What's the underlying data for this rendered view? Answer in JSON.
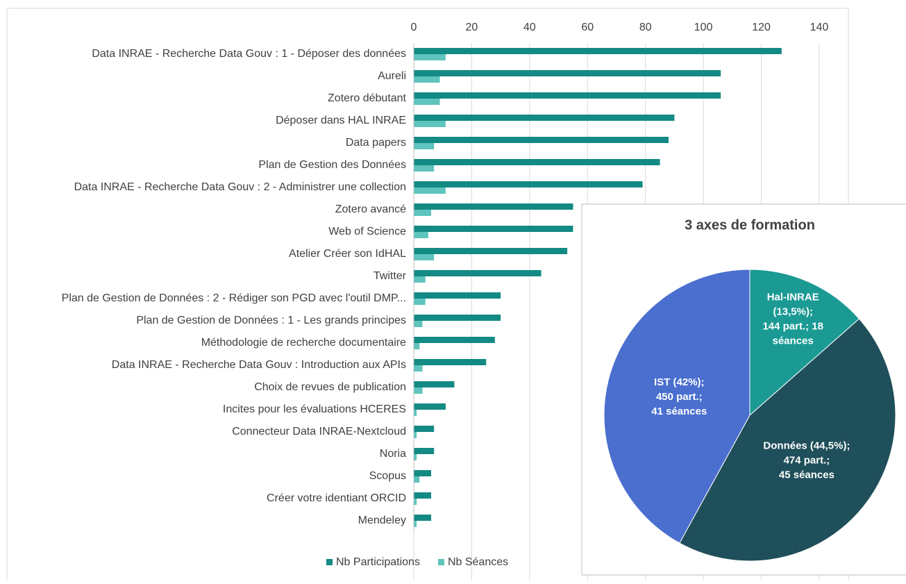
{
  "chart_data": [
    {
      "type": "bar",
      "orientation": "horizontal",
      "categories": [
        "Data INRAE - Recherche Data Gouv : 1 - Déposer des données",
        "Aureli",
        "Zotero débutant",
        "Déposer dans HAL INRAE",
        "Data papers",
        "Plan de Gestion des Données",
        "Data INRAE - Recherche Data Gouv : 2 - Administrer une collection",
        "Zotero avancé",
        "Web of Science",
        "Atelier Créer son IdHAL",
        "Twitter",
        "Plan de Gestion de Données : 2 - Rédiger son PGD avec l'outil DMP...",
        "Plan de Gestion de Données : 1 - Les grands principes",
        "Méthodologie de recherche documentaire",
        "Data INRAE - Recherche Data Gouv : Introduction aux APIs",
        "Choix de revues de publication",
        "Incites pour les évaluations HCERES",
        "Connecteur Data INRAE-Nextcloud",
        "Noria",
        "Scopus",
        "Créer votre identiant ORCID",
        "Mendeley"
      ],
      "series": [
        {
          "name": "Nb Participations",
          "color": "#138a84",
          "values": [
            127,
            106,
            106,
            90,
            88,
            85,
            79,
            55,
            55,
            53,
            44,
            30,
            30,
            28,
            25,
            14,
            11,
            7,
            7,
            6,
            6,
            6
          ]
        },
        {
          "name": "Nb Séances",
          "color": "#5ec4bd",
          "values": [
            11,
            9,
            9,
            11,
            7,
            7,
            11,
            6,
            5,
            7,
            4,
            4,
            3,
            2,
            3,
            3,
            1,
            1,
            1,
            2,
            1,
            1
          ]
        }
      ],
      "xlim": [
        0,
        140
      ],
      "xticks": [
        0,
        20,
        40,
        60,
        80,
        100,
        120,
        140
      ],
      "grid": true,
      "legend": "bottom"
    },
    {
      "type": "pie",
      "title": "3 axes de formation",
      "values": [
        13.5,
        44.5,
        42
      ],
      "value_labels": [
        [
          "Hal-INRAE",
          "(13,5%);",
          "144 part.; 18",
          "séances"
        ],
        [
          "Données (44,5%);",
          "474 part.;",
          "45 séances"
        ],
        [
          "IST (42%);",
          "450 part.;",
          "41 séances"
        ]
      ],
      "colors": [
        "#1b9a94",
        "#1f4f5a",
        "#4a6fcf"
      ]
    }
  ]
}
